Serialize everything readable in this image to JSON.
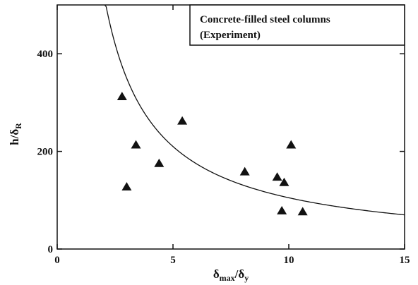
{
  "chart_data": {
    "type": "scatter",
    "title": "",
    "legend_box": {
      "line1": "Concrete-filled steel columns",
      "line2": "(Experiment)",
      "placement": "top-right"
    },
    "xlabel": {
      "main": "δ",
      "sub1": "max",
      "slash": "/δ",
      "sub2": "y"
    },
    "ylabel": {
      "main": "h/δ",
      "sub": "R"
    },
    "xlim": [
      0,
      15
    ],
    "ylim": [
      0,
      500
    ],
    "xticks": [
      0,
      5,
      10,
      15
    ],
    "yticks": [
      0,
      200,
      400
    ],
    "grid": false,
    "marker": "triangle",
    "points": [
      {
        "x": 2.8,
        "y": 312
      },
      {
        "x": 3.0,
        "y": 127
      },
      {
        "x": 3.4,
        "y": 213
      },
      {
        "x": 4.4,
        "y": 175
      },
      {
        "x": 5.4,
        "y": 262
      },
      {
        "x": 8.1,
        "y": 158
      },
      {
        "x": 9.5,
        "y": 147
      },
      {
        "x": 9.7,
        "y": 78
      },
      {
        "x": 9.8,
        "y": 136
      },
      {
        "x": 10.1,
        "y": 213
      },
      {
        "x": 10.6,
        "y": 76
      }
    ],
    "curve": {
      "description": "fitted curve y = k / x",
      "k": 1050,
      "x_start": 2.05,
      "x_end": 15
    }
  }
}
